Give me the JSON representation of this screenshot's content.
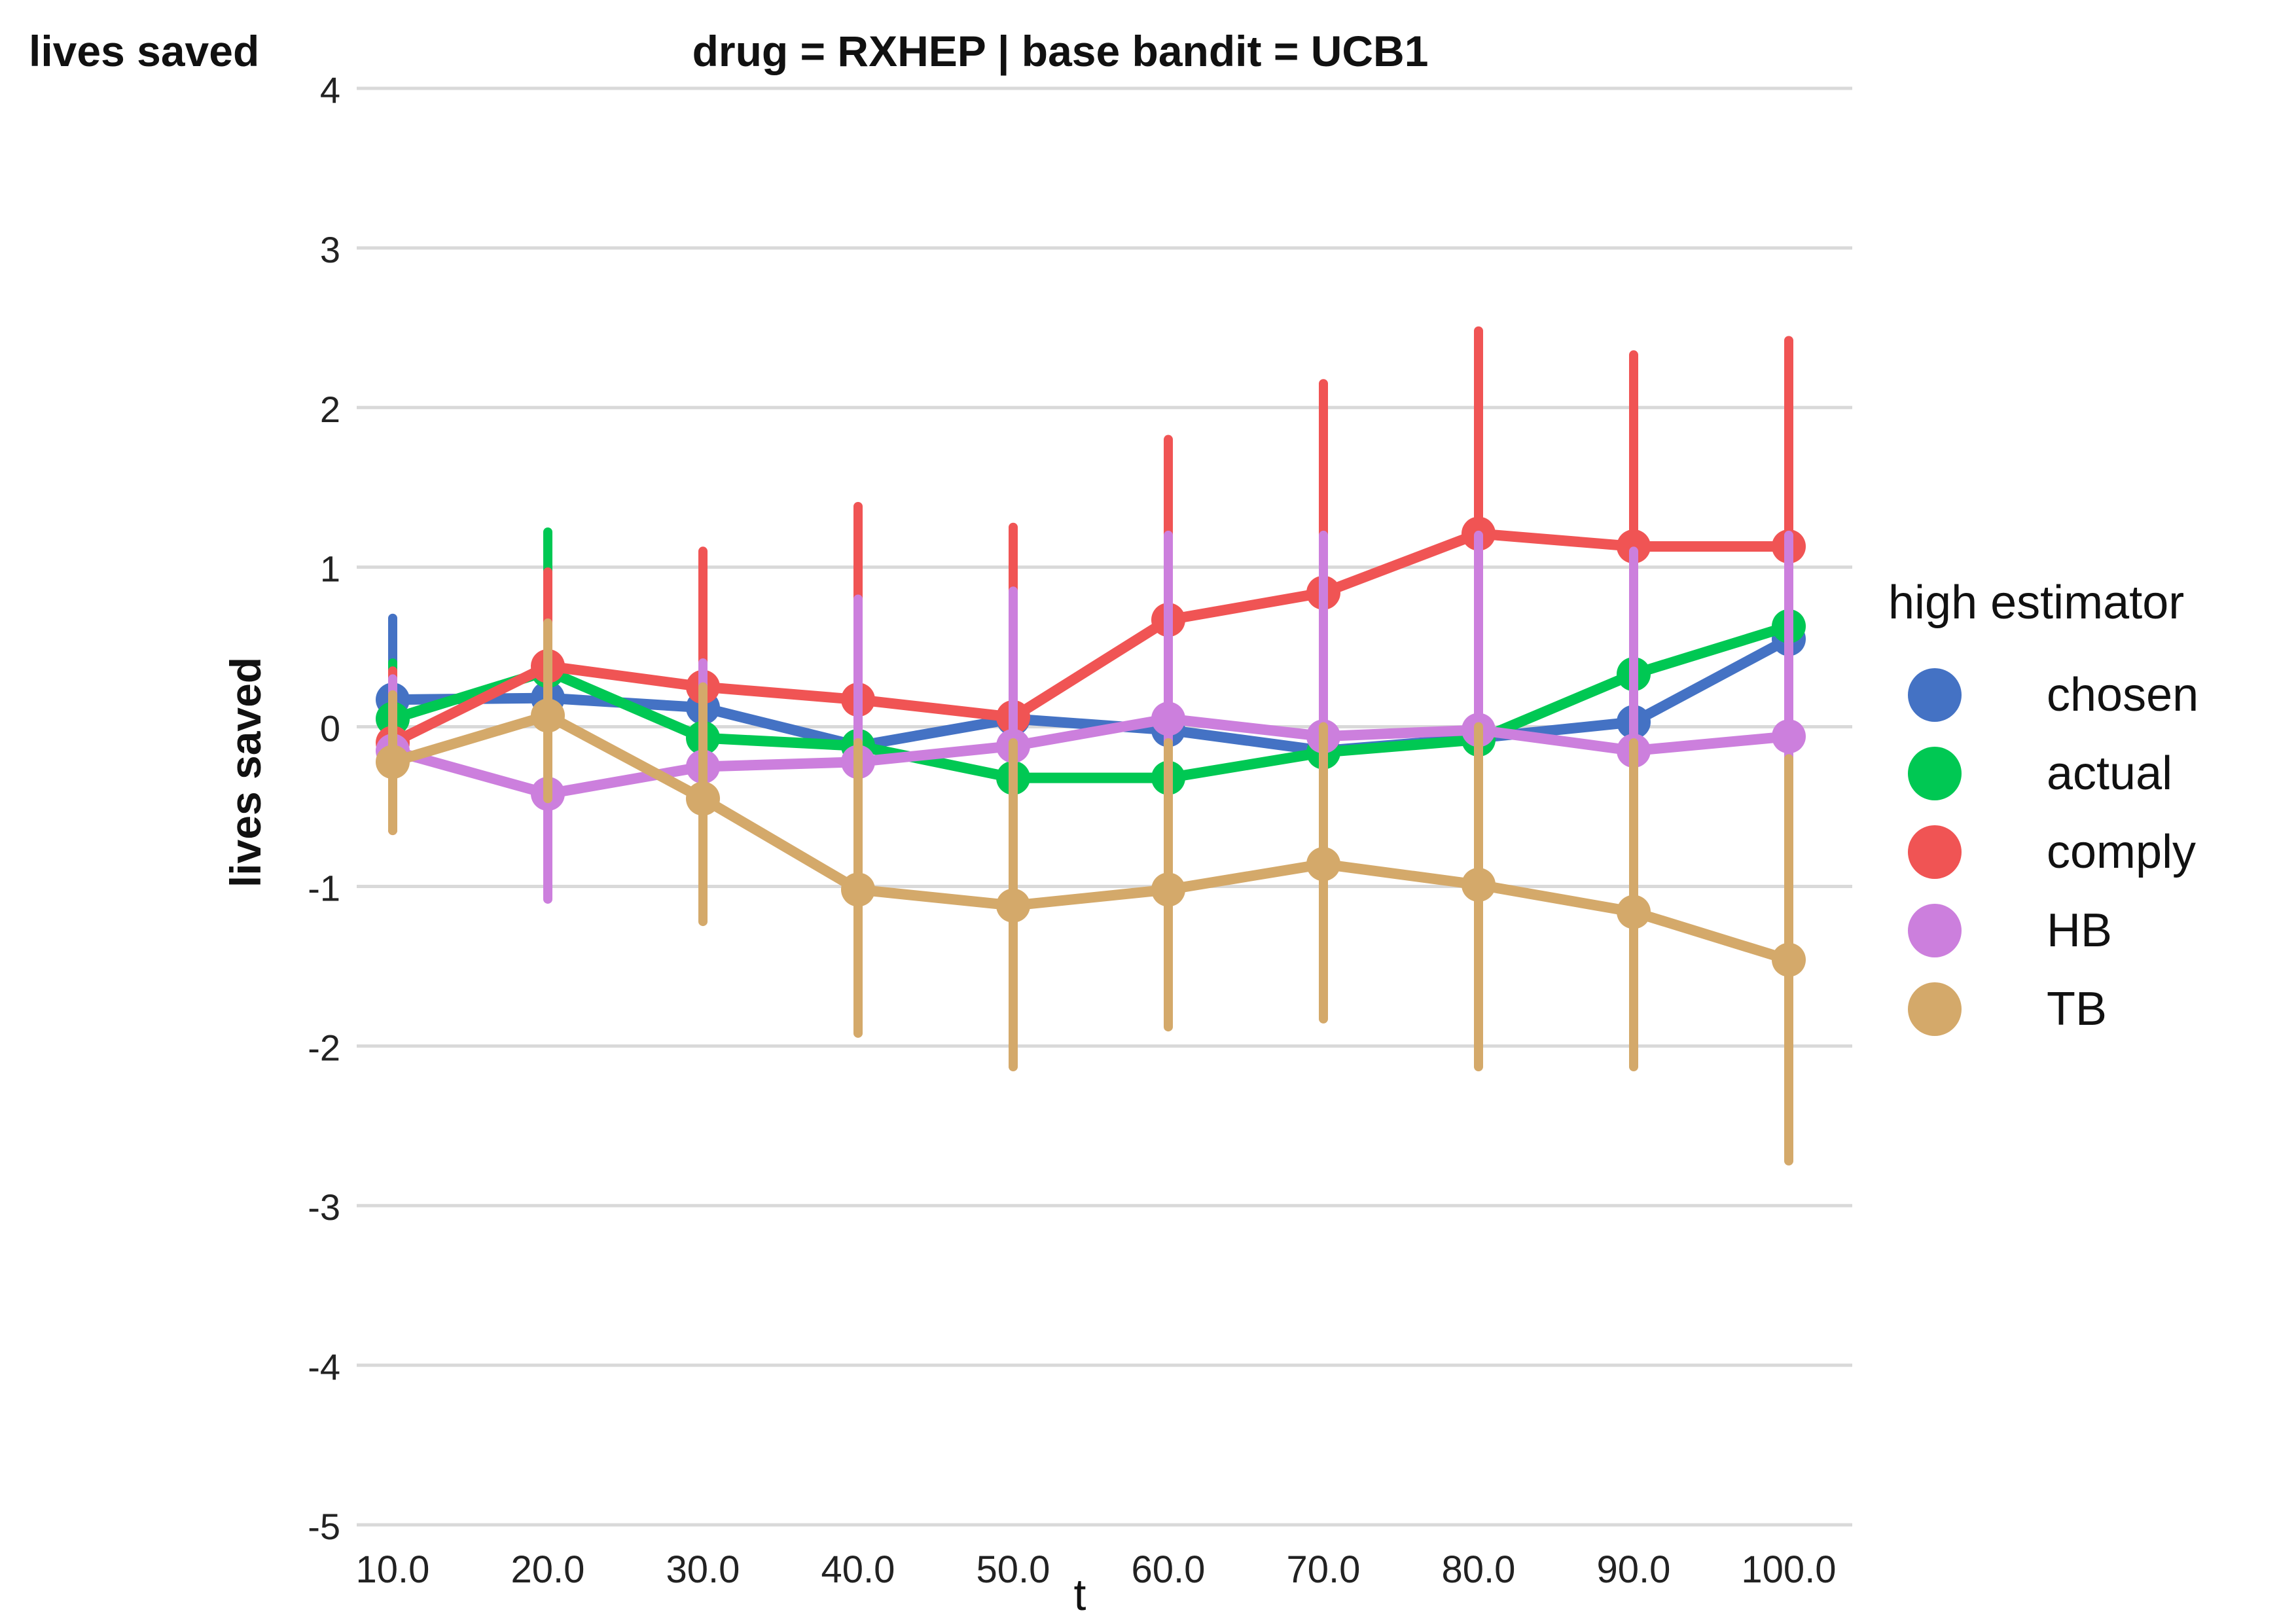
{
  "corner_label": "lives saved",
  "legend_title": "high estimator",
  "chart_data": {
    "type": "line",
    "title": "drug = RXHEP | base bandit = UCB1",
    "xlabel": "t",
    "ylabel": "lives saved",
    "x": [
      10,
      20,
      30,
      40,
      50,
      60,
      70,
      80,
      90,
      100
    ],
    "x_tick_labels": [
      "10.0",
      "20.0",
      "30.0",
      "40.0",
      "50.0",
      "60.0",
      "70.0",
      "80.0",
      "90.0",
      "100.0"
    ],
    "ylim": [
      -5,
      4
    ],
    "y_ticks": [
      4,
      3,
      2,
      1,
      0,
      -1,
      -2,
      -3,
      -4,
      -5
    ],
    "y_tick_labels": [
      "4",
      "3",
      "2",
      "1",
      "0",
      "-1",
      "-2",
      "-3",
      "-4",
      "-5"
    ],
    "grid": "horizontal",
    "legend_position": "right",
    "series": [
      {
        "name": "chosen",
        "color": "#4472c4",
        "values": [
          0.17,
          0.18,
          0.12,
          -0.12,
          0.05,
          -0.02,
          -0.15,
          -0.07,
          0.03,
          0.55
        ],
        "err_low": [
          -0.3,
          -0.2,
          -0.3,
          -0.5,
          -0.4,
          -0.5,
          -0.6,
          -0.5,
          -0.4,
          0.1
        ],
        "err_high": [
          0.68,
          0.55,
          0.55,
          0.25,
          0.5,
          0.4,
          0.3,
          0.35,
          0.45,
          1.0
        ]
      },
      {
        "name": "actual",
        "color": "#00c853",
        "values": [
          0.05,
          0.35,
          -0.07,
          -0.12,
          -0.32,
          -0.32,
          -0.16,
          -0.08,
          0.33,
          0.63
        ],
        "err_low": [
          -0.4,
          -0.3,
          -0.6,
          -0.6,
          -0.8,
          -0.8,
          -0.6,
          -0.6,
          -0.2,
          0.1
        ],
        "err_high": [
          0.4,
          1.22,
          0.45,
          0.4,
          0.2,
          0.2,
          0.3,
          0.4,
          0.8,
          1.1
        ]
      },
      {
        "name": "comply",
        "color": "#f05454",
        "values": [
          -0.1,
          0.38,
          0.25,
          0.17,
          0.06,
          0.67,
          0.84,
          1.21,
          1.13,
          1.13
        ],
        "err_low": [
          -0.65,
          -0.2,
          -0.55,
          -0.9,
          -1.1,
          -0.7,
          -0.5,
          -0.1,
          -0.1,
          -0.2
        ],
        "err_high": [
          0.35,
          0.97,
          1.1,
          1.38,
          1.25,
          1.8,
          2.15,
          2.48,
          2.33,
          2.42
        ]
      },
      {
        "name": "HB",
        "color": "#cc7fdd",
        "values": [
          -0.15,
          -0.42,
          -0.25,
          -0.22,
          -0.12,
          0.05,
          -0.06,
          -0.02,
          -0.15,
          -0.06
        ],
        "err_low": [
          -0.6,
          -1.08,
          -0.9,
          -1.0,
          -1.0,
          -0.8,
          -0.9,
          -0.9,
          -1.0,
          -1.0
        ],
        "err_high": [
          0.3,
          0.3,
          0.4,
          0.8,
          0.85,
          1.2,
          1.2,
          1.2,
          1.1,
          1.2
        ]
      },
      {
        "name": "TB",
        "color": "#d4a96a",
        "values": [
          -0.22,
          0.07,
          -0.45,
          -1.02,
          -1.12,
          -1.02,
          -0.86,
          -0.99,
          -1.16,
          -1.46
        ],
        "err_low": [
          -0.65,
          -0.45,
          -1.22,
          -1.92,
          -2.13,
          -1.88,
          -1.83,
          -2.13,
          -2.13,
          -2.72
        ],
        "err_high": [
          0.2,
          0.65,
          0.25,
          -0.1,
          -0.1,
          -0.1,
          0.0,
          0.0,
          -0.1,
          -0.2
        ]
      }
    ]
  }
}
